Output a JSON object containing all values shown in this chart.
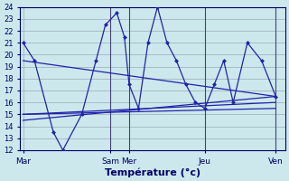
{
  "xlabel": "Température (°c)",
  "background_color": "#cce8ec",
  "grid_color": "#99aabb",
  "line_color": "#2222aa",
  "ylim": [
    12,
    24
  ],
  "yticks": [
    12,
    13,
    14,
    15,
    16,
    17,
    18,
    19,
    20,
    21,
    22,
    23,
    24
  ],
  "xlim": [
    0,
    28
  ],
  "day_labels": [
    "Mar",
    "Sam",
    "Mer",
    "Jeu",
    "Ven"
  ],
  "day_positions": [
    0.3,
    9.5,
    11.5,
    19.5,
    27.0
  ],
  "xtick_positions": [
    0.3,
    9.5,
    11.5,
    19.5,
    27.0
  ],
  "jagged_line": {
    "x": [
      0.3,
      1.5,
      3.5,
      4.5,
      6.5,
      8.0,
      9.0,
      10.2,
      11.0,
      11.5,
      12.5,
      13.5,
      14.5,
      15.5,
      16.5,
      17.5,
      18.5,
      19.5,
      20.5,
      21.5,
      22.5,
      24.0,
      25.5,
      27.0
    ],
    "y": [
      21,
      19.5,
      13.5,
      12.0,
      15.0,
      19.5,
      22.5,
      23.5,
      21.5,
      17.5,
      15.5,
      21.0,
      24.0,
      21.0,
      19.5,
      17.5,
      16.0,
      15.5,
      17.5,
      19.5,
      16.0,
      21.0,
      19.5,
      16.5
    ]
  },
  "trend_lines": [
    {
      "x": [
        0.3,
        27.0
      ],
      "y": [
        19.5,
        16.5
      ]
    },
    {
      "x": [
        0.3,
        27.0
      ],
      "y": [
        15.0,
        15.5
      ]
    },
    {
      "x": [
        0.3,
        27.0
      ],
      "y": [
        15.0,
        16.0
      ]
    },
    {
      "x": [
        0.3,
        27.0
      ],
      "y": [
        14.5,
        16.5
      ]
    }
  ]
}
